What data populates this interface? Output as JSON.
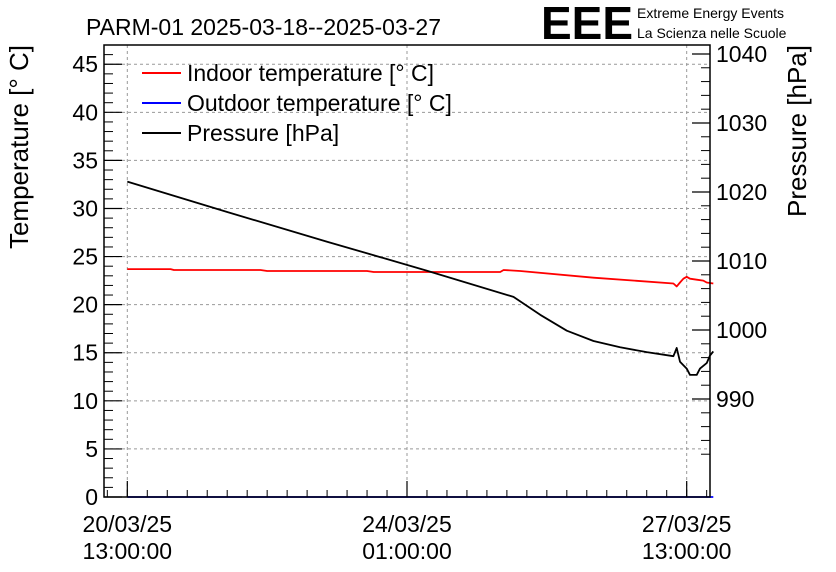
{
  "chart_data": {
    "type": "line",
    "title": "PARM-01 2025-03-18--2025-03-27",
    "ylabel_left": "Temperature [° C]",
    "ylabel_right": "Pressure [hPa]",
    "ylim_left": [
      0,
      47
    ],
    "ylim_right": [
      975.8,
      1041.3
    ],
    "xlim_hours": [
      -7,
      175
    ],
    "grid": true,
    "legend_position": "top-left",
    "x_ticks": [
      {
        "h": 0,
        "date": "20/03/25",
        "time": "13:00:00"
      },
      {
        "h": 84,
        "date": "24/03/25",
        "time": "01:00:00"
      },
      {
        "h": 168,
        "date": "27/03/25",
        "time": "13:00:00"
      }
    ],
    "y_left_ticks": [
      0,
      5,
      10,
      15,
      20,
      25,
      30,
      35,
      40,
      45
    ],
    "y_left_tick_labels": [
      "0",
      "5",
      "10",
      "15",
      "20",
      "25",
      "30",
      "35",
      "40",
      "45"
    ],
    "y_right_ticks": [
      990,
      1000,
      1010,
      1020,
      1030,
      1040
    ],
    "y_right_tick_labels": [
      "990",
      "1000",
      "1010",
      "1020",
      "1030",
      "1040"
    ],
    "series": [
      {
        "name": "Indoor temperature [° C]",
        "color": "#ff0000",
        "axis": "left",
        "points": [
          [
            0,
            23.7
          ],
          [
            13,
            23.7
          ],
          [
            14,
            23.6
          ],
          [
            40,
            23.6
          ],
          [
            42,
            23.5
          ],
          [
            72,
            23.5
          ],
          [
            74,
            23.4
          ],
          [
            112,
            23.4
          ],
          [
            113,
            23.6
          ],
          [
            118,
            23.5
          ],
          [
            140,
            22.8
          ],
          [
            164,
            22.2
          ],
          [
            165,
            21.9
          ],
          [
            166,
            22.3
          ],
          [
            167,
            22.7
          ],
          [
            168,
            22.9
          ],
          [
            169,
            22.7
          ],
          [
            171,
            22.6
          ],
          [
            173,
            22.5
          ],
          [
            174,
            22.3
          ],
          [
            176,
            22.2
          ]
        ]
      },
      {
        "name": "Outdoor temperature [° C]",
        "color": "#0000ff",
        "axis": "left",
        "points": [
          [
            0,
            0
          ],
          [
            176,
            0
          ]
        ]
      },
      {
        "name": "Pressure [hPa]",
        "color": "#000000",
        "axis": "right",
        "points": [
          [
            0,
            1021.5
          ],
          [
            30,
            1017.1
          ],
          [
            60,
            1012.8
          ],
          [
            90,
            1008.6
          ],
          [
            116,
            1004.8
          ],
          [
            124,
            1002.2
          ],
          [
            132,
            999.9
          ],
          [
            140,
            998.4
          ],
          [
            148,
            997.5
          ],
          [
            156,
            996.8
          ],
          [
            164,
            996.2
          ],
          [
            165,
            997.4
          ],
          [
            166,
            995.4
          ],
          [
            168,
            994.4
          ],
          [
            169,
            993.5
          ],
          [
            171,
            993.5
          ],
          [
            172,
            994.4
          ],
          [
            174,
            995.2
          ],
          [
            175,
            996.3
          ],
          [
            176,
            996.9
          ]
        ]
      }
    ]
  },
  "logo": {
    "mark": "EEE",
    "line1": "Extreme Energy Events",
    "line2": "La Scienza nelle Scuole",
    "color": "#1010e0"
  }
}
